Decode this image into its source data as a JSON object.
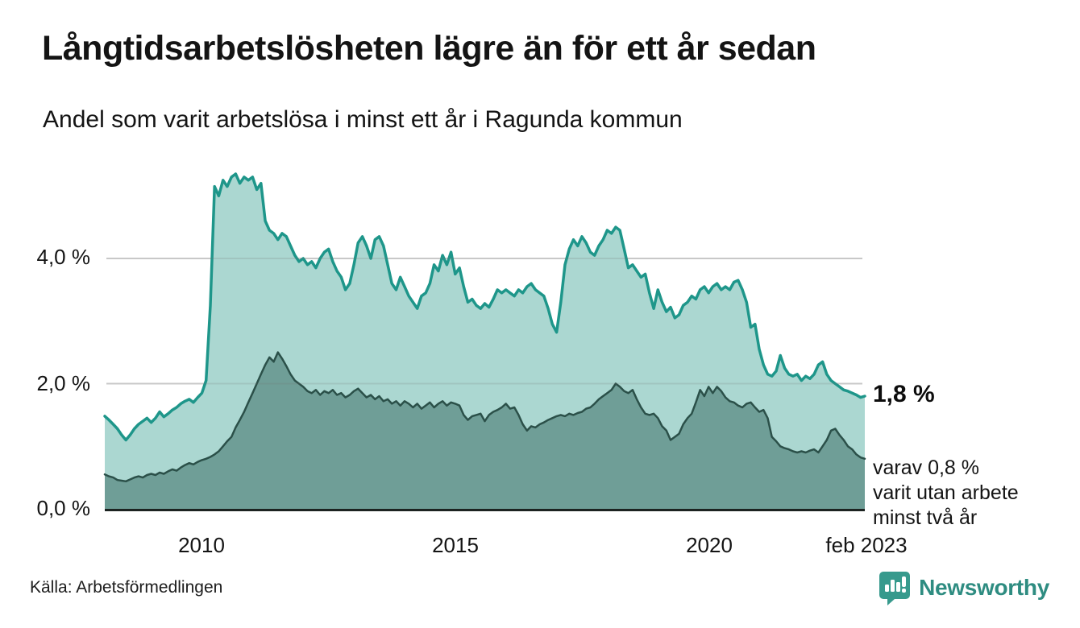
{
  "header": {
    "title": "Långtidsarbetslösheten lägre än för ett år sedan",
    "subtitle": "Andel som varit arbetslösa i minst ett år i Ragunda kommun"
  },
  "annotations": {
    "latest_value": "1,8 %",
    "note_lines": [
      "varav 0,8 %",
      "varit utan arbete",
      "minst två år"
    ]
  },
  "footer": {
    "source": "Källa: Arbetsförmedlingen",
    "brand": "Newsworthy"
  },
  "colors": {
    "line_one_year": "#1e968a",
    "fill_one_year": "#abd7d1",
    "line_two_years": "#2b5049",
    "fill_two_years": "#6f9e97",
    "gridline": "#dcdcdc",
    "axis": "#1c2321",
    "brand_teal": "#2e8c81",
    "logo_teal": "#379a8d"
  },
  "chart_data": {
    "type": "area",
    "title": "Långtidsarbetslösheten lägre än för ett år sedan",
    "subtitle": "Andel som varit arbetslösa i minst ett år i Ragunda kommun",
    "unit": "%",
    "frequency": "monthly",
    "x_start": "2008-02",
    "x_end": "2023-02",
    "ylim": [
      0,
      5.6
    ],
    "grid": "horizontal",
    "y_tick_values": [
      4.0,
      2.0,
      0.0
    ],
    "y_tick_labels": [
      "4,0 %",
      "2,0 %",
      "0,0 %"
    ],
    "x_tick_labels": [
      "2010",
      "2015",
      "2020",
      "feb 2023"
    ],
    "x_tick_years": [
      2010.0,
      2015.0,
      2020.0,
      2023.083
    ],
    "series": [
      {
        "name": "Andel som varit arbetslösa i minst ett år",
        "end_label": "1,8 %",
        "last_value": 1.8,
        "values": [
          1.48,
          1.42,
          1.35,
          1.28,
          1.18,
          1.1,
          1.18,
          1.28,
          1.35,
          1.4,
          1.45,
          1.38,
          1.45,
          1.55,
          1.47,
          1.52,
          1.58,
          1.62,
          1.68,
          1.72,
          1.75,
          1.7,
          1.78,
          1.85,
          2.05,
          3.25,
          5.15,
          5.0,
          5.25,
          5.15,
          5.3,
          5.35,
          5.2,
          5.3,
          5.25,
          5.3,
          5.1,
          5.2,
          4.6,
          4.45,
          4.4,
          4.3,
          4.4,
          4.35,
          4.2,
          4.05,
          3.95,
          4.0,
          3.9,
          3.95,
          3.85,
          4.0,
          4.1,
          4.15,
          3.95,
          3.8,
          3.7,
          3.5,
          3.6,
          3.9,
          4.25,
          4.35,
          4.2,
          4.0,
          4.3,
          4.35,
          4.2,
          3.9,
          3.6,
          3.5,
          3.7,
          3.55,
          3.4,
          3.3,
          3.2,
          3.4,
          3.45,
          3.6,
          3.9,
          3.8,
          4.05,
          3.9,
          4.1,
          3.75,
          3.85,
          3.55,
          3.3,
          3.35,
          3.25,
          3.2,
          3.28,
          3.22,
          3.35,
          3.5,
          3.45,
          3.5,
          3.45,
          3.4,
          3.5,
          3.45,
          3.55,
          3.6,
          3.5,
          3.45,
          3.4,
          3.2,
          2.95,
          2.82,
          3.3,
          3.9,
          4.15,
          4.3,
          4.2,
          4.35,
          4.25,
          4.1,
          4.05,
          4.2,
          4.3,
          4.45,
          4.4,
          4.5,
          4.45,
          4.15,
          3.85,
          3.9,
          3.8,
          3.7,
          3.75,
          3.45,
          3.2,
          3.5,
          3.3,
          3.15,
          3.22,
          3.05,
          3.1,
          3.25,
          3.3,
          3.4,
          3.35,
          3.5,
          3.55,
          3.45,
          3.55,
          3.6,
          3.5,
          3.55,
          3.5,
          3.62,
          3.65,
          3.5,
          3.3,
          2.9,
          2.95,
          2.55,
          2.3,
          2.15,
          2.12,
          2.2,
          2.45,
          2.25,
          2.15,
          2.12,
          2.15,
          2.05,
          2.12,
          2.08,
          2.15,
          2.3,
          2.35,
          2.15,
          2.05,
          2.0,
          1.95,
          1.9,
          1.88,
          1.85,
          1.82,
          1.78,
          1.8
        ]
      },
      {
        "name": "varav utan arbete minst två år",
        "end_label": "varav 0,8 % varit utan arbete minst två år",
        "last_value": 0.8,
        "values": [
          0.55,
          0.52,
          0.5,
          0.46,
          0.45,
          0.44,
          0.47,
          0.5,
          0.52,
          0.5,
          0.54,
          0.56,
          0.54,
          0.58,
          0.56,
          0.6,
          0.63,
          0.61,
          0.66,
          0.7,
          0.73,
          0.71,
          0.75,
          0.78,
          0.8,
          0.83,
          0.87,
          0.92,
          1.0,
          1.08,
          1.15,
          1.3,
          1.42,
          1.55,
          1.7,
          1.85,
          2.0,
          2.15,
          2.3,
          2.42,
          2.35,
          2.5,
          2.4,
          2.28,
          2.15,
          2.05,
          2.0,
          1.95,
          1.88,
          1.85,
          1.9,
          1.82,
          1.88,
          1.85,
          1.9,
          1.82,
          1.85,
          1.78,
          1.82,
          1.88,
          1.92,
          1.85,
          1.78,
          1.82,
          1.75,
          1.8,
          1.72,
          1.75,
          1.68,
          1.72,
          1.65,
          1.72,
          1.68,
          1.62,
          1.68,
          1.6,
          1.65,
          1.7,
          1.62,
          1.68,
          1.72,
          1.65,
          1.7,
          1.68,
          1.65,
          1.5,
          1.42,
          1.48,
          1.5,
          1.52,
          1.4,
          1.5,
          1.55,
          1.58,
          1.62,
          1.68,
          1.6,
          1.62,
          1.5,
          1.35,
          1.25,
          1.32,
          1.3,
          1.35,
          1.38,
          1.42,
          1.45,
          1.48,
          1.5,
          1.48,
          1.52,
          1.5,
          1.53,
          1.55,
          1.6,
          1.62,
          1.68,
          1.75,
          1.8,
          1.85,
          1.9,
          2.0,
          1.95,
          1.88,
          1.85,
          1.9,
          1.75,
          1.62,
          1.52,
          1.5,
          1.52,
          1.45,
          1.32,
          1.25,
          1.1,
          1.15,
          1.2,
          1.35,
          1.45,
          1.52,
          1.7,
          1.9,
          1.8,
          1.95,
          1.85,
          1.95,
          1.88,
          1.78,
          1.72,
          1.7,
          1.65,
          1.62,
          1.68,
          1.7,
          1.62,
          1.55,
          1.58,
          1.45,
          1.15,
          1.08,
          1.0,
          0.97,
          0.95,
          0.92,
          0.9,
          0.92,
          0.9,
          0.93,
          0.95,
          0.9,
          1.0,
          1.1,
          1.25,
          1.28,
          1.18,
          1.1,
          1.0,
          0.95,
          0.87,
          0.82,
          0.8
        ]
      }
    ]
  }
}
